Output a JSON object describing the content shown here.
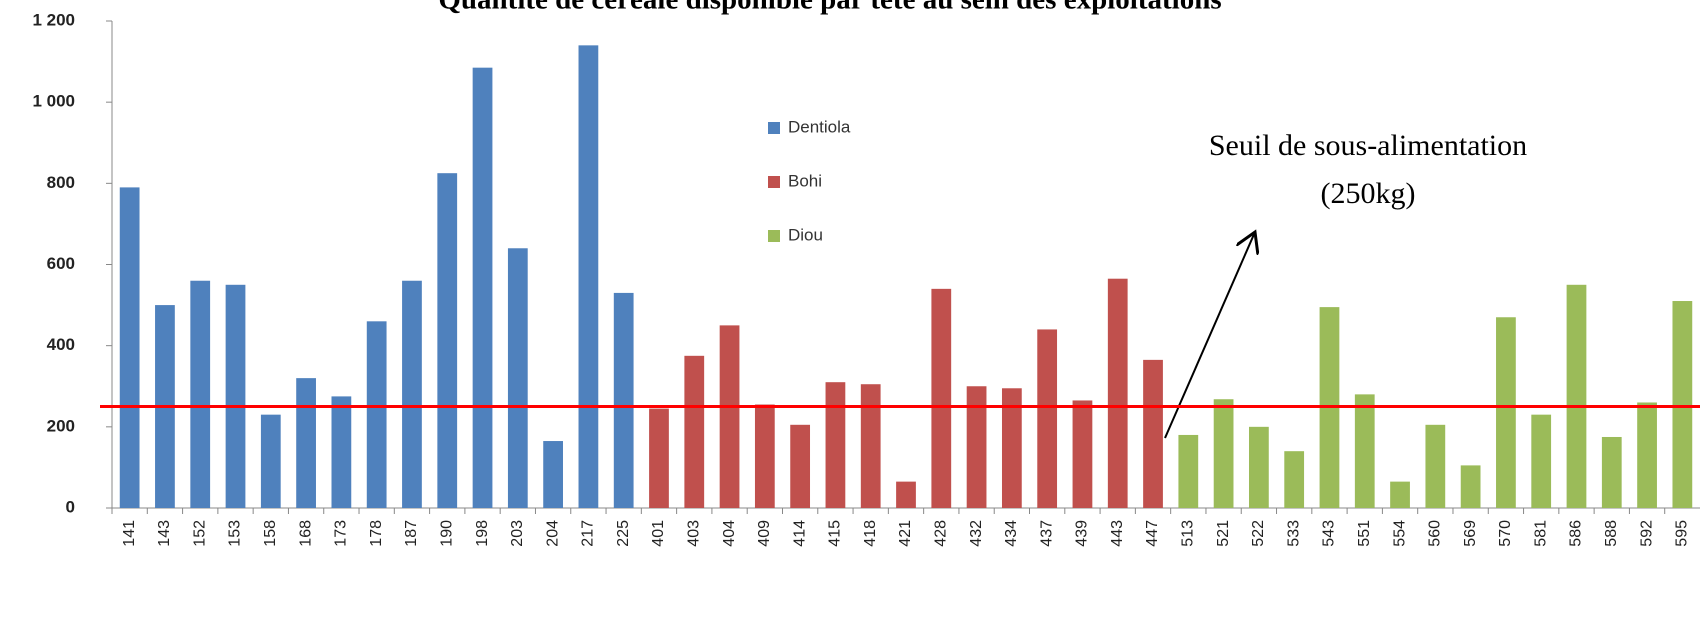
{
  "chart_data": {
    "type": "bar",
    "title": "Quantité de céréale disponible par tête au sein des exploitations",
    "categories": [
      "141",
      "143",
      "152",
      "153",
      "158",
      "168",
      "173",
      "178",
      "187",
      "190",
      "198",
      "203",
      "204",
      "217",
      "225",
      "401",
      "403",
      "404",
      "409",
      "414",
      "415",
      "418",
      "421",
      "428",
      "432",
      "434",
      "437",
      "439",
      "443",
      "447",
      "513",
      "521",
      "522",
      "533",
      "543",
      "551",
      "554",
      "560",
      "569",
      "570",
      "581",
      "586",
      "588",
      "592",
      "595"
    ],
    "series": [
      {
        "name": "Dentiola",
        "color": "#4f81bd",
        "values": [
          790,
          500,
          560,
          550,
          230,
          320,
          275,
          460,
          560,
          825,
          1085,
          640,
          165,
          1140,
          530,
          null,
          null,
          null,
          null,
          null,
          null,
          null,
          null,
          null,
          null,
          null,
          null,
          null,
          null,
          null,
          null,
          null,
          null,
          null,
          null,
          null,
          null,
          null,
          null,
          null,
          null,
          null,
          null,
          null,
          null
        ]
      },
      {
        "name": "Bohi",
        "color": "#c0504d",
        "values": [
          null,
          null,
          null,
          null,
          null,
          null,
          null,
          null,
          null,
          null,
          null,
          null,
          null,
          null,
          null,
          245,
          375,
          450,
          255,
          205,
          310,
          305,
          65,
          540,
          300,
          295,
          440,
          265,
          565,
          365,
          null,
          null,
          null,
          null,
          null,
          null,
          null,
          null,
          null,
          null,
          null,
          null,
          null,
          null,
          null
        ]
      },
      {
        "name": "Diou",
        "color": "#9bbb59",
        "values": [
          null,
          null,
          null,
          null,
          null,
          null,
          null,
          null,
          null,
          null,
          null,
          null,
          null,
          null,
          null,
          null,
          null,
          null,
          null,
          null,
          null,
          null,
          null,
          null,
          null,
          null,
          null,
          null,
          null,
          null,
          180,
          268,
          200,
          140,
          495,
          280,
          65,
          205,
          105,
          470,
          230,
          550,
          175,
          260,
          510
        ]
      }
    ],
    "ylim": [
      0,
      1200
    ],
    "yticks": [
      0,
      200,
      400,
      600,
      800,
      {
        "value": 1000,
        "label": "1 000"
      },
      {
        "value": 1200,
        "label": "1 200"
      }
    ],
    "threshold": 250,
    "threshold_color": "#ff0000",
    "annotation": [
      "Seuil de sous-alimentation",
      "(250kg)"
    ]
  }
}
